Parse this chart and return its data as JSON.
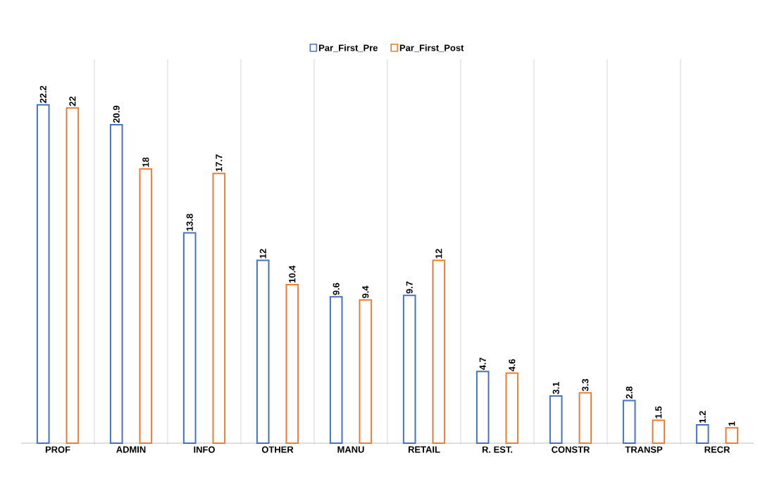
{
  "chart_data": {
    "type": "bar",
    "categories": [
      "PROF",
      "ADMIN",
      "INFO",
      "OTHER",
      "MANU",
      "RETAIL",
      "R. EST.",
      "CONSTR",
      "TRANSP",
      "RECR"
    ],
    "series": [
      {
        "name": "Par_First_Pre",
        "color": "#4472c4",
        "values": [
          22.2,
          20.9,
          13.8,
          12,
          9.6,
          9.7,
          4.7,
          3.1,
          2.8,
          1.2
        ]
      },
      {
        "name": "Par_First_Post",
        "color": "#ed7d31",
        "values": [
          22,
          18,
          17.7,
          10.4,
          9.4,
          12,
          4.6,
          3.3,
          1.5,
          1
        ]
      }
    ],
    "data_labels": true,
    "grid": "x",
    "legend": "top"
  }
}
